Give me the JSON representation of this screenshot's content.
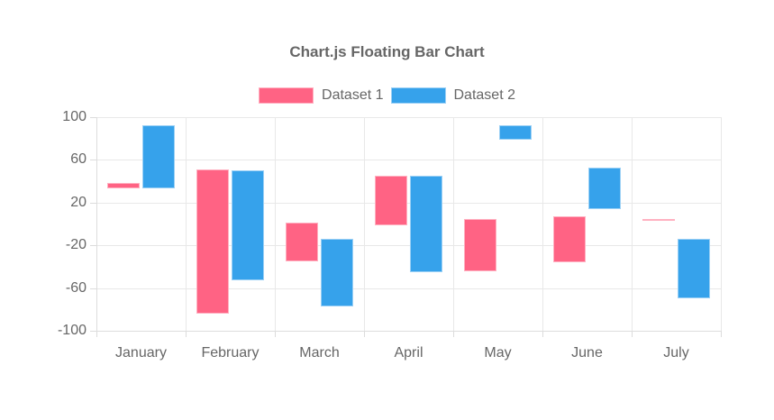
{
  "chart_data": {
    "type": "bar",
    "variant": "floating",
    "title": "Chart.js Floating Bar Chart",
    "categories": [
      "January",
      "February",
      "March",
      "April",
      "May",
      "June",
      "July"
    ],
    "series": [
      {
        "name": "Dataset 1",
        "color": "#FF6384",
        "border_color": "#FFB1C1",
        "ranges": [
          [
            33,
            38
          ],
          [
            -84,
            51
          ],
          [
            -35,
            1
          ],
          [
            -1,
            45
          ],
          [
            -44,
            5
          ],
          [
            -36,
            7
          ],
          [
            4,
            5
          ]
        ]
      },
      {
        "name": "Dataset 2",
        "color": "#36A2EB",
        "border_color": "#9BD0F5",
        "ranges": [
          [
            33,
            92
          ],
          [
            -53,
            50
          ],
          [
            -77,
            -14
          ],
          [
            -45,
            45
          ],
          [
            79,
            92
          ],
          [
            14,
            53
          ],
          [
            -70,
            -14
          ]
        ]
      }
    ],
    "ylim": [
      -100,
      100
    ],
    "yticks": [
      100,
      60,
      20,
      -20,
      -60,
      -100
    ],
    "grid": true,
    "legend_position": "top",
    "text_color": "#666666",
    "grid_color": "#E8E8E8",
    "background_color": "#FFFFFF"
  }
}
